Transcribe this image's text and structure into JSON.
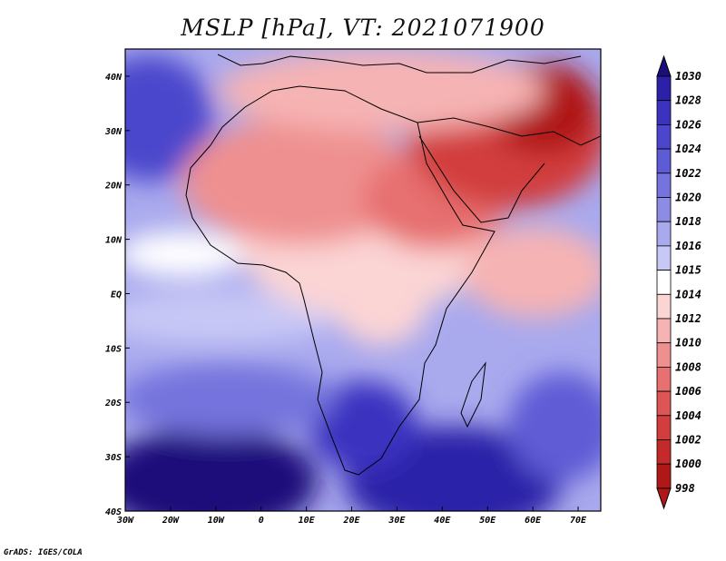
{
  "title": "MSLP [hPa], VT: 2021071900",
  "credit": "GrADS: IGES/COLA",
  "map": {
    "lon_range": [
      -30,
      75
    ],
    "lat_range": [
      -40,
      45
    ],
    "x_ticks": [
      "30W",
      "20W",
      "10W",
      "0",
      "10E",
      "20E",
      "30E",
      "40E",
      "50E",
      "60E",
      "70E"
    ],
    "x_tick_values": [
      -30,
      -20,
      -10,
      0,
      10,
      20,
      30,
      40,
      50,
      60,
      70
    ],
    "y_ticks": [
      "40N",
      "30N",
      "20N",
      "10N",
      "EQ",
      "10S",
      "20S",
      "30S",
      "40S"
    ],
    "y_tick_values": [
      40,
      30,
      20,
      10,
      0,
      -10,
      -20,
      -30,
      -40
    ]
  },
  "colorbar": {
    "labels": [
      "1030",
      "1028",
      "1026",
      "1024",
      "1022",
      "1020",
      "1018",
      "1016",
      "1015",
      "1014",
      "1012",
      "1010",
      "1008",
      "1006",
      "1004",
      "1002",
      "1000",
      "998"
    ],
    "colors": [
      "#1a0e7a",
      "#2c20a8",
      "#3b33c0",
      "#4b46cc",
      "#5e5bd6",
      "#7573dd",
      "#8d8ce5",
      "#a9a9ee",
      "#c8c8f6",
      "#ffffff",
      "#fbd4d4",
      "#f6b3b3",
      "#ef9090",
      "#e77070",
      "#dd5555",
      "#d23e3e",
      "#c42a2a",
      "#b01818"
    ]
  },
  "icons": {
    "colorbar_up": "triangle-up-icon",
    "colorbar_down": "triangle-down-icon"
  }
}
